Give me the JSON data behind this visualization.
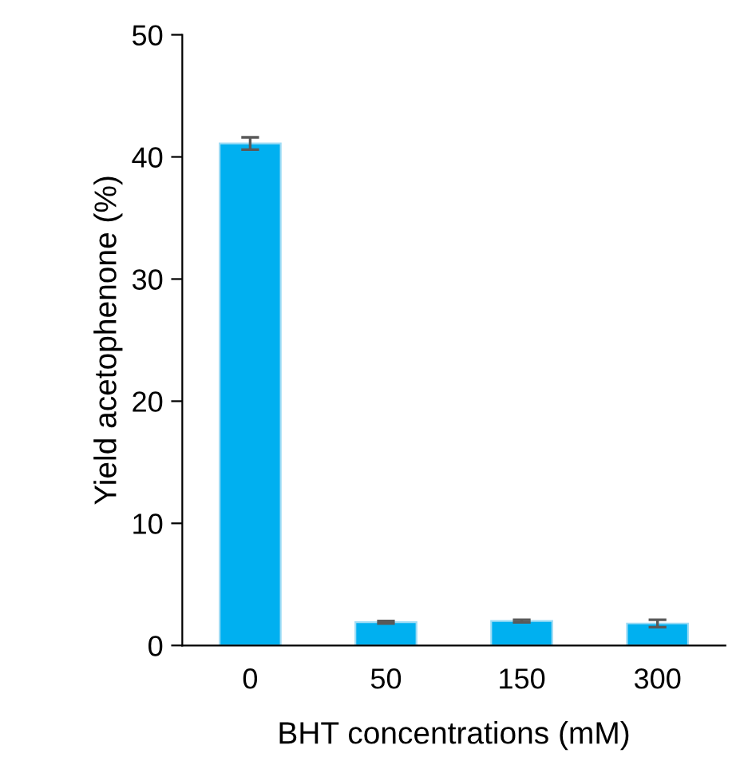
{
  "chart_data": {
    "type": "bar",
    "xlabel": "BHT concentrations (mM)",
    "ylabel": "Yield acetophenone (%)",
    "categories": [
      "0",
      "50",
      "150",
      "300"
    ],
    "values": [
      41.1,
      1.9,
      2.0,
      1.8
    ],
    "errors": [
      0.5,
      0.1,
      0.1,
      0.3
    ],
    "color": "#00b0f0",
    "ylim": [
      0,
      50
    ],
    "yticks": [
      0,
      10,
      20,
      30,
      40,
      50
    ],
    "grid": false,
    "legend": false
  }
}
